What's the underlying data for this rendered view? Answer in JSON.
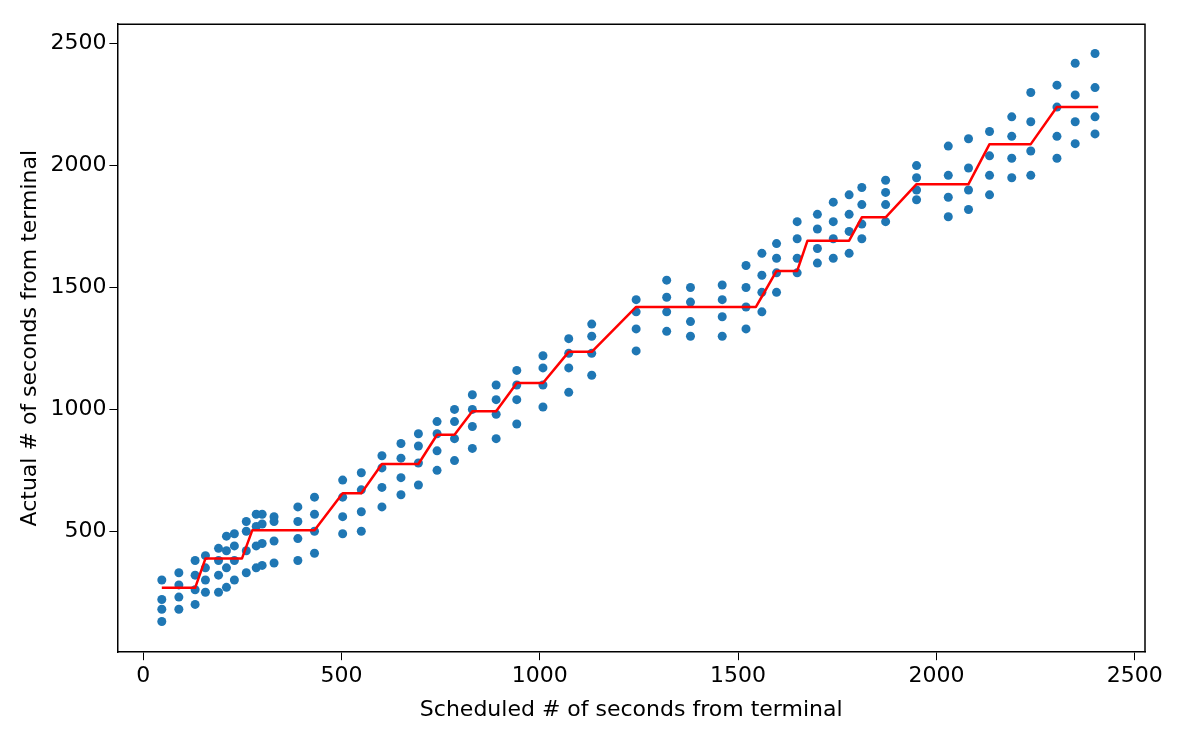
{
  "chart_data": {
    "type": "scatter",
    "xlabel": "Scheduled # of seconds from terminal",
    "ylabel": "Actual # of seconds from terminal",
    "xlim": [
      -65,
      2526
    ],
    "ylim": [
      4,
      2580
    ],
    "xticks": [
      0,
      500,
      1000,
      1500,
      2000,
      2500
    ],
    "yticks": [
      500,
      1000,
      1500,
      2000,
      2500
    ],
    "grid": false,
    "legend": false,
    "marker": "circle",
    "series": [
      {
        "type": "scatter",
        "color": "#1f77b4",
        "x": [
          47,
          47,
          47,
          47,
          90,
          90,
          90,
          90,
          131,
          131,
          131,
          131,
          157,
          157,
          157,
          157,
          190,
          190,
          190,
          190,
          210,
          210,
          210,
          210,
          230,
          230,
          230,
          230,
          260,
          260,
          260,
          260,
          285,
          285,
          285,
          285,
          300,
          300,
          300,
          300,
          330,
          330,
          330,
          330,
          390,
          390,
          390,
          390,
          432,
          432,
          432,
          432,
          503,
          503,
          503,
          503,
          550,
          550,
          550,
          550,
          602,
          602,
          602,
          602,
          650,
          650,
          650,
          650,
          694,
          694,
          694,
          694,
          741,
          741,
          741,
          741,
          785,
          785,
          785,
          785,
          830,
          830,
          830,
          830,
          890,
          890,
          890,
          890,
          942,
          942,
          942,
          942,
          1008,
          1008,
          1008,
          1008,
          1073,
          1073,
          1073,
          1073,
          1131,
          1131,
          1131,
          1131,
          1243,
          1243,
          1243,
          1243,
          1320,
          1320,
          1320,
          1320,
          1380,
          1380,
          1380,
          1380,
          1460,
          1460,
          1460,
          1460,
          1520,
          1520,
          1520,
          1520,
          1560,
          1560,
          1560,
          1560,
          1597,
          1597,
          1597,
          1597,
          1649,
          1649,
          1649,
          1649,
          1700,
          1700,
          1700,
          1700,
          1740,
          1740,
          1740,
          1740,
          1780,
          1780,
          1780,
          1780,
          1812,
          1812,
          1812,
          1812,
          1872,
          1872,
          1872,
          1872,
          1950,
          1950,
          1950,
          1950,
          2030,
          2030,
          2030,
          2030,
          2081,
          2081,
          2081,
          2081,
          2134,
          2134,
          2134,
          2134,
          2190,
          2190,
          2190,
          2190,
          2238,
          2238,
          2238,
          2238,
          2304,
          2304,
          2304,
          2304,
          2350,
          2350,
          2350,
          2350,
          2400,
          2400,
          2400,
          2400
        ],
        "values": [
          130,
          180,
          220,
          300,
          180,
          230,
          280,
          330,
          200,
          260,
          320,
          380,
          250,
          300,
          350,
          400,
          250,
          320,
          380,
          430,
          270,
          350,
          420,
          480,
          300,
          380,
          440,
          490,
          330,
          420,
          500,
          540,
          350,
          440,
          520,
          570,
          360,
          450,
          530,
          570,
          370,
          460,
          540,
          560,
          380,
          470,
          540,
          600,
          410,
          500,
          570,
          640,
          490,
          560,
          640,
          710,
          500,
          580,
          670,
          740,
          600,
          680,
          760,
          810,
          650,
          720,
          800,
          860,
          690,
          780,
          850,
          900,
          750,
          830,
          900,
          950,
          790,
          880,
          950,
          1000,
          840,
          930,
          1000,
          1060,
          880,
          980,
          1040,
          1100,
          940,
          1040,
          1100,
          1160,
          1010,
          1100,
          1170,
          1220,
          1070,
          1170,
          1230,
          1290,
          1140,
          1230,
          1300,
          1350,
          1240,
          1330,
          1400,
          1450,
          1320,
          1400,
          1460,
          1530,
          1300,
          1360,
          1440,
          1500,
          1300,
          1380,
          1450,
          1510,
          1330,
          1420,
          1500,
          1590,
          1400,
          1480,
          1550,
          1640,
          1480,
          1560,
          1620,
          1680,
          1560,
          1620,
          1700,
          1770,
          1600,
          1660,
          1740,
          1800,
          1620,
          1700,
          1770,
          1850,
          1640,
          1730,
          1800,
          1880,
          1700,
          1760,
          1840,
          1910,
          1770,
          1840,
          1890,
          1940,
          1860,
          1900,
          1950,
          2000,
          1790,
          1870,
          1960,
          2080,
          1820,
          1900,
          1990,
          2110,
          1880,
          1960,
          2040,
          2140,
          1950,
          2030,
          2120,
          2200,
          1960,
          2060,
          2180,
          2300,
          2030,
          2120,
          2240,
          2330,
          2090,
          2180,
          2290,
          2420,
          2130,
          2200,
          2320,
          2460
        ]
      },
      {
        "type": "line",
        "color": "#ff0000",
        "marker": "none",
        "x": [
          47,
          131,
          157,
          249,
          275,
          432,
          503,
          550,
          602,
          694,
          741,
          785,
          830,
          890,
          942,
          1008,
          1073,
          1131,
          1243,
          1545,
          1597,
          1649,
          1675,
          1780,
          1812,
          1872,
          1950,
          2081,
          2134,
          2238,
          2304,
          2408
        ],
        "values": [
          268,
          268,
          388,
          388,
          504,
          504,
          656,
          656,
          776,
          776,
          896,
          896,
          992,
          992,
          1108,
          1108,
          1236,
          1236,
          1420,
          1420,
          1568,
          1568,
          1692,
          1692,
          1788,
          1788,
          1924,
          1924,
          2088,
          2088,
          2240,
          2240
        ]
      }
    ]
  }
}
